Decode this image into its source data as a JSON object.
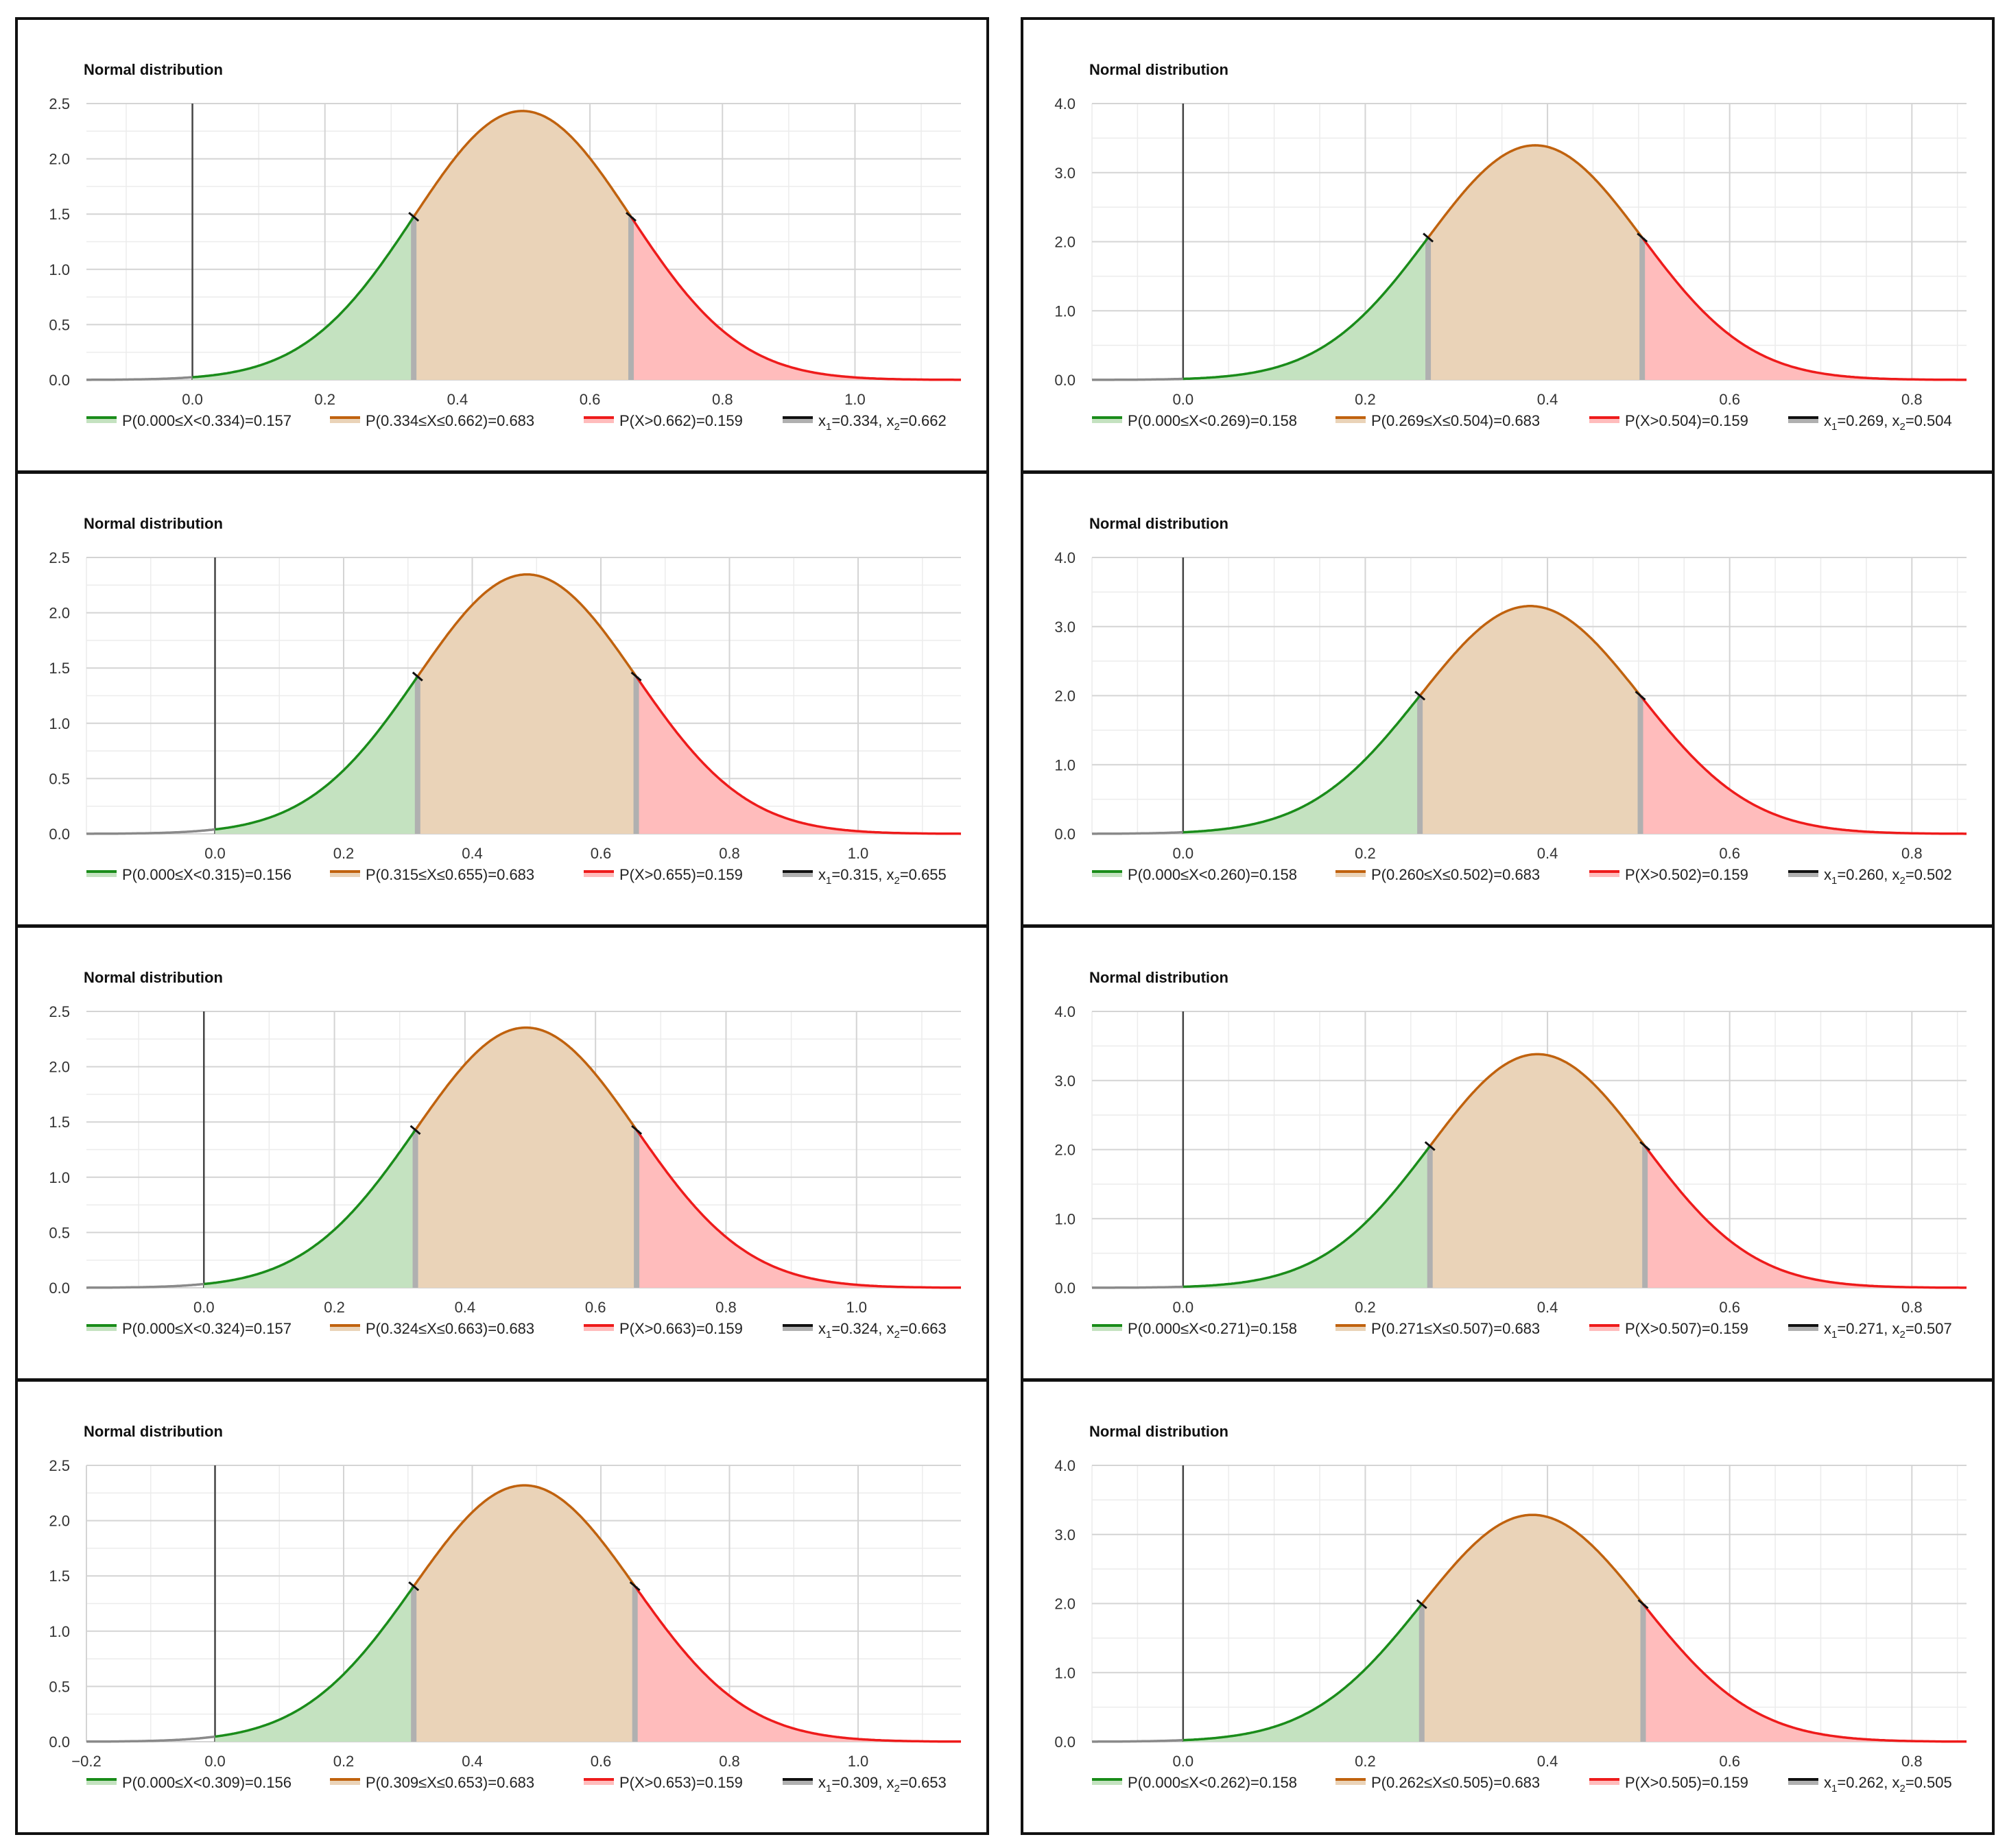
{
  "colors": {
    "green": "#1a8c1a",
    "green_fill": "#c4e2c0",
    "brown": "#c0620e",
    "brown_fill": "#ead3b8",
    "red": "#ee1b1b",
    "red_fill": "#ffbcbc",
    "marker_black": "#111111",
    "marker_grey": "#b0b0b0",
    "grid": "#d4d4d4",
    "grid_minor": "#ececec",
    "axis": "#444444",
    "tick_text": "#333333"
  },
  "chart_data": [
    {
      "type": "area",
      "title": "Normal distribution",
      "mu": 0.498,
      "sigma": 0.164,
      "xlim": [
        -0.16,
        1.16
      ],
      "ylim": [
        0,
        2.5
      ],
      "xticks": [
        "0.0",
        "0.2",
        "0.4",
        "0.6",
        "0.8",
        "1.0"
      ],
      "yticks": [
        "0.0",
        "0.5",
        "1.0",
        "1.5",
        "2.0",
        "2.5"
      ],
      "x1": 0.334,
      "x2": 0.662,
      "legend": [
        {
          "prefix": "P(0.000≤X<0.334)=0.157"
        },
        {
          "prefix": "P(0.334≤X≤0.662)=0.683"
        },
        {
          "prefix": "P(X>0.662)=0.159"
        },
        {
          "prefix": "x",
          "s1": "1",
          "m": "=0.334, x",
          "s2": "2",
          "suffix": "=0.662"
        }
      ]
    },
    {
      "type": "area",
      "title": "Normal distribution",
      "mu": 0.3865,
      "sigma": 0.1175,
      "xlim": [
        -0.1,
        0.86
      ],
      "ylim": [
        0,
        4.0
      ],
      "xticks": [
        "0.0",
        "0.2",
        "0.4",
        "0.6",
        "0.8"
      ],
      "yticks": [
        "0.0",
        "1.0",
        "2.0",
        "3.0",
        "4.0"
      ],
      "x1": 0.269,
      "x2": 0.504,
      "legend": [
        {
          "prefix": "P(0.000≤X<0.269)=0.158"
        },
        {
          "prefix": "P(0.269≤X≤0.504)=0.683"
        },
        {
          "prefix": "P(X>0.504)=0.159"
        },
        {
          "prefix": "x",
          "s1": "1",
          "m": "=0.269, x",
          "s2": "2",
          "suffix": "=0.504"
        }
      ]
    },
    {
      "type": "area",
      "title": "Normal distribution",
      "mu": 0.485,
      "sigma": 0.17,
      "xlim": [
        -0.2,
        1.16
      ],
      "ylim": [
        0,
        2.5
      ],
      "xticks": [
        "0.0",
        "0.2",
        "0.4",
        "0.6",
        "0.8",
        "1.0"
      ],
      "yticks": [
        "0.0",
        "0.5",
        "1.0",
        "1.5",
        "2.0",
        "2.5"
      ],
      "x1": 0.315,
      "x2": 0.655,
      "legend": [
        {
          "prefix": "P(0.000≤X<0.315)=0.156"
        },
        {
          "prefix": "P(0.315≤X≤0.655)=0.683"
        },
        {
          "prefix": "P(X>0.655)=0.159"
        },
        {
          "prefix": "x",
          "s1": "1",
          "m": "=0.315, x",
          "s2": "2",
          "suffix": "=0.655"
        }
      ]
    },
    {
      "type": "area",
      "title": "Normal distribution",
      "mu": 0.381,
      "sigma": 0.121,
      "xlim": [
        -0.1,
        0.86
      ],
      "ylim": [
        0,
        4.0
      ],
      "xticks": [
        "0.0",
        "0.2",
        "0.4",
        "0.6",
        "0.8"
      ],
      "yticks": [
        "0.0",
        "1.0",
        "2.0",
        "3.0",
        "4.0"
      ],
      "x1": 0.26,
      "x2": 0.502,
      "legend": [
        {
          "prefix": "P(0.000≤X<0.260)=0.158"
        },
        {
          "prefix": "P(0.260≤X≤0.502)=0.683"
        },
        {
          "prefix": "P(X>0.502)=0.159"
        },
        {
          "prefix": "x",
          "s1": "1",
          "m": "=0.260, x",
          "s2": "2",
          "suffix": "=0.502"
        }
      ]
    },
    {
      "type": "area",
      "title": "Normal distribution",
      "mu": 0.4935,
      "sigma": 0.1695,
      "xlim": [
        -0.18,
        1.16
      ],
      "ylim": [
        0,
        2.5
      ],
      "xticks": [
        "0.0",
        "0.2",
        "0.4",
        "0.6",
        "0.8",
        "1.0"
      ],
      "yticks": [
        "0.0",
        "0.5",
        "1.0",
        "1.5",
        "2.0",
        "2.5"
      ],
      "x1": 0.324,
      "x2": 0.663,
      "legend": [
        {
          "prefix": "P(0.000≤X<0.324)=0.157"
        },
        {
          "prefix": "P(0.324≤X≤0.663)=0.683"
        },
        {
          "prefix": "P(X>0.663)=0.159"
        },
        {
          "prefix": "x",
          "s1": "1",
          "m": "=0.324, x",
          "s2": "2",
          "suffix": "=0.663"
        }
      ]
    },
    {
      "type": "area",
      "title": "Normal distribution",
      "mu": 0.389,
      "sigma": 0.118,
      "xlim": [
        -0.1,
        0.86
      ],
      "ylim": [
        0,
        4.0
      ],
      "xticks": [
        "0.0",
        "0.2",
        "0.4",
        "0.6",
        "0.8"
      ],
      "yticks": [
        "0.0",
        "1.0",
        "2.0",
        "3.0",
        "4.0"
      ],
      "x1": 0.271,
      "x2": 0.507,
      "legend": [
        {
          "prefix": "P(0.000≤X<0.271)=0.158"
        },
        {
          "prefix": "P(0.271≤X≤0.507)=0.683"
        },
        {
          "prefix": "P(X>0.507)=0.159"
        },
        {
          "prefix": "x",
          "s1": "1",
          "m": "=0.271, x",
          "s2": "2",
          "suffix": "=0.507"
        }
      ]
    },
    {
      "type": "area",
      "title": "Normal distribution",
      "mu": 0.481,
      "sigma": 0.172,
      "xlim": [
        -0.2,
        1.16
      ],
      "ylim": [
        0,
        2.5
      ],
      "xticks": [
        "−0.2",
        "0.0",
        "0.2",
        "0.4",
        "0.6",
        "0.8",
        "1.0"
      ],
      "xtick_values": [
        -0.2,
        0,
        0.2,
        0.4,
        0.6,
        0.8,
        1.0
      ],
      "yticks": [
        "0.0",
        "0.5",
        "1.0",
        "1.5",
        "2.0",
        "2.5"
      ],
      "x1": 0.309,
      "x2": 0.653,
      "legend": [
        {
          "prefix": "P(0.000≤X<0.309)=0.156"
        },
        {
          "prefix": "P(0.309≤X≤0.653)=0.683"
        },
        {
          "prefix": "P(X>0.653)=0.159"
        },
        {
          "prefix": "x",
          "s1": "1",
          "m": "=0.309, x",
          "s2": "2",
          "suffix": "=0.653"
        }
      ]
    },
    {
      "type": "area",
      "title": "Normal distribution",
      "mu": 0.3835,
      "sigma": 0.1215,
      "xlim": [
        -0.1,
        0.86
      ],
      "ylim": [
        0,
        4.0
      ],
      "xticks": [
        "0.0",
        "0.2",
        "0.4",
        "0.6",
        "0.8"
      ],
      "yticks": [
        "0.0",
        "1.0",
        "2.0",
        "3.0",
        "4.0"
      ],
      "x1": 0.262,
      "x2": 0.505,
      "legend": [
        {
          "prefix": "P(0.000≤X<0.262)=0.158"
        },
        {
          "prefix": "P(0.262≤X≤0.505)=0.683"
        },
        {
          "prefix": "P(X>0.505)=0.159"
        },
        {
          "prefix": "x",
          "s1": "1",
          "m": "=0.262, x",
          "s2": "2",
          "suffix": "=0.505"
        }
      ]
    }
  ]
}
